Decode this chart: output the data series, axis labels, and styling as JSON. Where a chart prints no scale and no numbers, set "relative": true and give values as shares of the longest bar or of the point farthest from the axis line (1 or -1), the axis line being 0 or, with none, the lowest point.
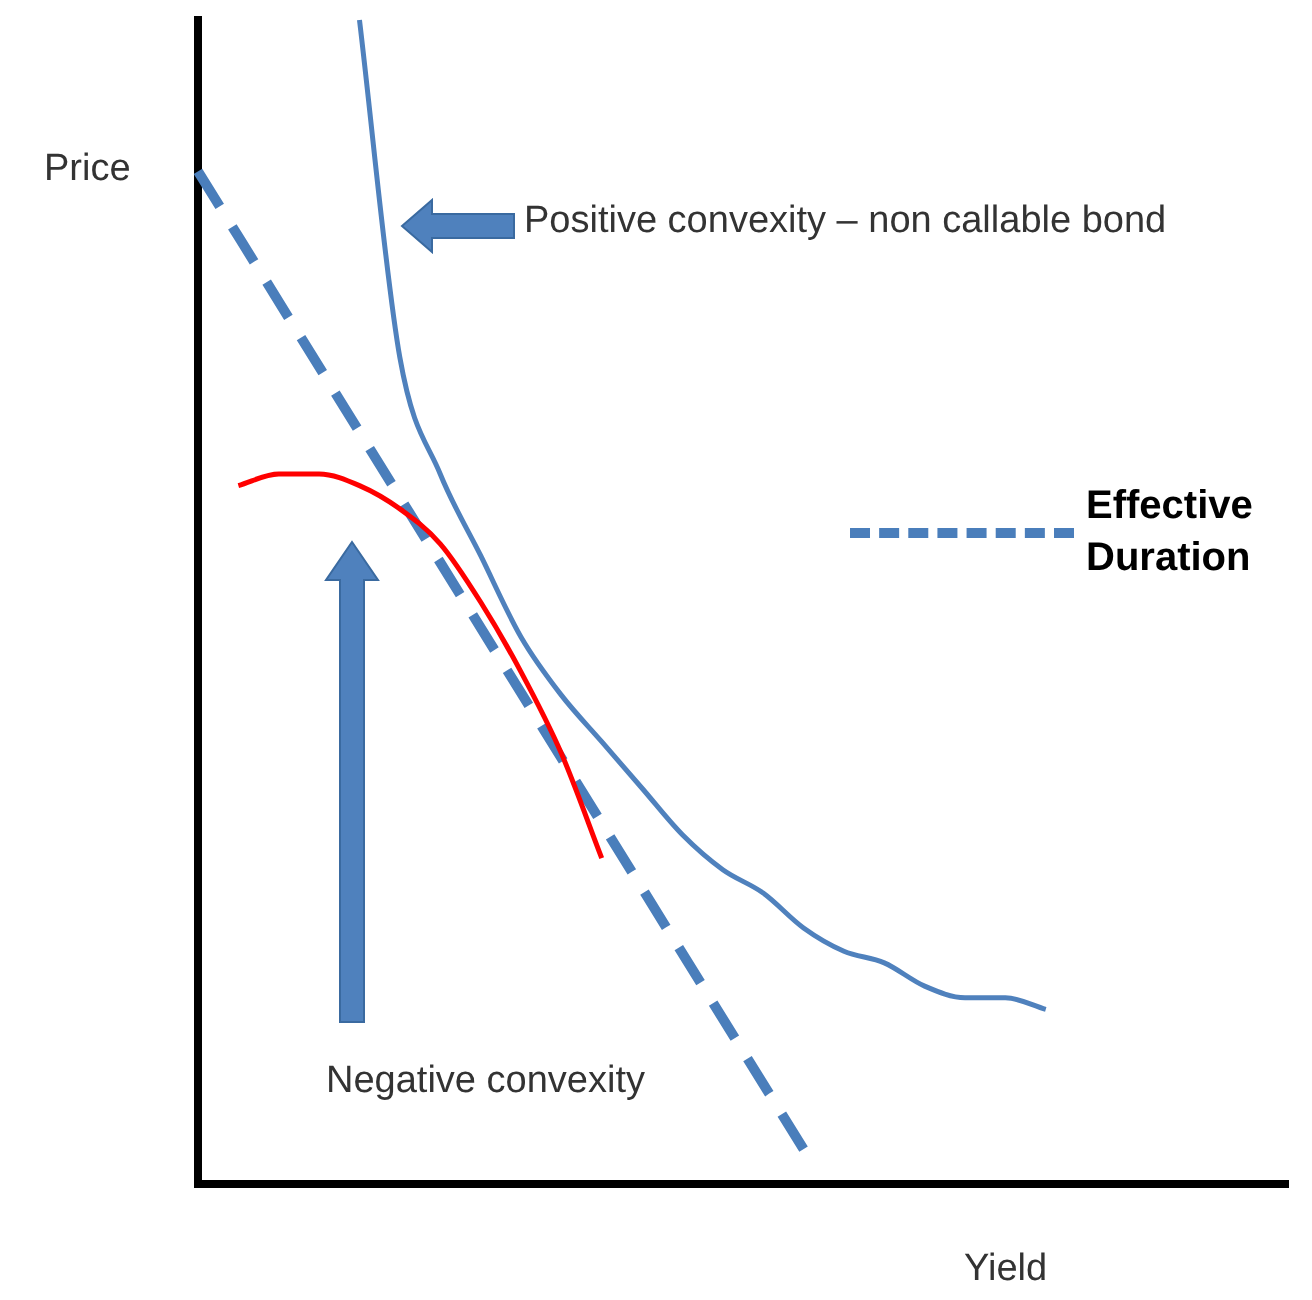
{
  "chart_data": {
    "type": "line",
    "relative": true,
    "xlabel": "Yield",
    "ylabel": "Price",
    "marker": "none",
    "legend": "right",
    "categories": [
      null,
      null,
      null,
      null,
      null,
      null,
      null,
      null,
      null,
      null,
      null,
      null,
      null,
      null,
      null,
      null,
      null,
      null,
      null,
      null,
      null,
      null,
      null,
      null,
      null,
      null,
      null,
      null
    ],
    "series": [
      {
        "color": "#4f81bd",
        "values": [
          null,
          null,
          null,
          null,
          1,
          0.71,
          0.61,
          0.54,
          0.47,
          0.42,
          0.38,
          0.34,
          0.3,
          0.27,
          0.25,
          0.22,
          0.2,
          0.19,
          0.17,
          0.16,
          0.16,
          0.15,
          null,
          null,
          null,
          null,
          null,
          null
        ]
      },
      {
        "color": "#ff0000",
        "values": [
          null,
          0.6,
          0.61,
          0.61,
          0.6,
          0.58,
          0.55,
          0.5,
          0.44,
          0.37,
          0.28,
          null,
          null,
          null,
          null,
          null,
          null,
          null,
          null,
          null,
          null,
          null,
          null,
          null,
          null,
          null,
          null,
          null
        ]
      },
      {
        "name": "Effective Duration",
        "color": "#4a7ebb",
        "line_style": "dashed",
        "values": [
          0.87,
          null,
          null,
          null,
          null,
          null,
          null,
          null,
          null,
          null,
          null,
          null,
          null,
          null,
          null,
          0.03,
          null,
          null,
          null,
          null,
          null,
          null,
          null,
          null,
          null,
          null,
          null,
          null
        ]
      }
    ],
    "annotations": [
      "Positive convexity – non callable bond",
      "Negative convexity"
    ]
  }
}
